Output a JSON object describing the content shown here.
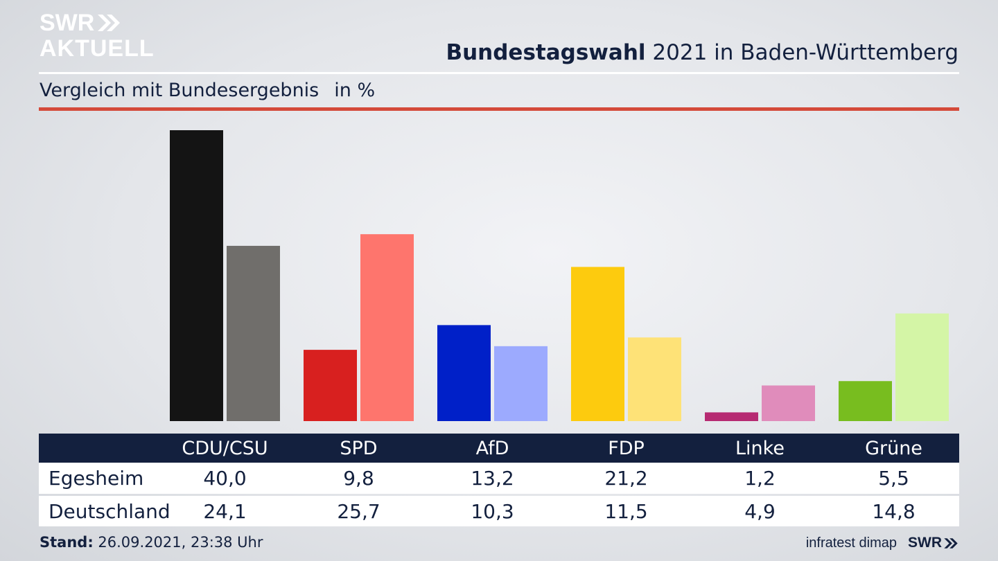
{
  "header": {
    "logo_line1": "SWR",
    "logo_line2": "AKTUELL",
    "title_bold": "Bundestagswahl",
    "title_rest": " 2021 in Baden-Württemberg",
    "subtitle": "Vergleich mit Bundesergebnis",
    "unit": "in %"
  },
  "footer": {
    "stand_label": "Stand:",
    "stand_value": " 26.09.2021, 23:38 Uhr",
    "source": "infratest dimap",
    "brand": "SWR"
  },
  "icons": {
    "logo_arrows": "double-chevron-right-icon",
    "footer_arrows": "double-chevron-right-icon"
  },
  "chart_data": {
    "type": "bar",
    "categories": [
      "CDU/CSU",
      "SPD",
      "AfD",
      "FDP",
      "Linke",
      "Grüne"
    ],
    "series": [
      {
        "name": "Egesheim",
        "values": [
          40.0,
          9.8,
          13.2,
          21.2,
          1.2,
          5.5
        ],
        "labels": [
          "40,0",
          "9,8",
          "13,2",
          "21,2",
          "1,2",
          "5,5"
        ],
        "colors": [
          "#141414",
          "#d8201f",
          "#0020c8",
          "#fdcb0e",
          "#b62a72",
          "#78bd1f"
        ]
      },
      {
        "name": "Deutschland",
        "values": [
          24.1,
          25.7,
          10.3,
          11.5,
          4.9,
          14.8
        ],
        "labels": [
          "24,1",
          "25,7",
          "10,3",
          "11,5",
          "4,9",
          "14,8"
        ],
        "colors": [
          "#706e6b",
          "#fe756d",
          "#9caafe",
          "#fee277",
          "#e08cbb",
          "#d4f5a6"
        ]
      }
    ],
    "ylim": [
      0,
      40.0
    ],
    "grid": false,
    "legend": "table-below"
  }
}
